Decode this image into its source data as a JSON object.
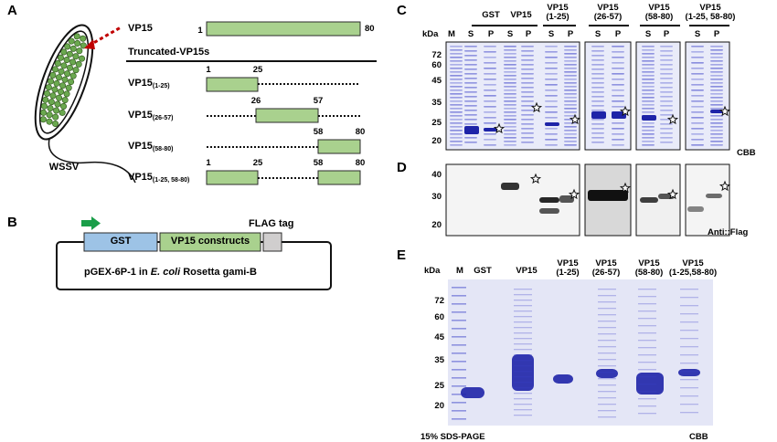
{
  "panels": {
    "a": "A",
    "b": "B",
    "c": "C",
    "d": "D",
    "e": "E"
  },
  "panel_a": {
    "virus_label": "WSSV",
    "full_label": "VP15",
    "full_start": "1",
    "full_end": "80",
    "section_title": "Truncated-VP15s",
    "constructs": [
      {
        "name": "VP15",
        "sub": "(1-25)",
        "nums": [
          "1",
          "25"
        ]
      },
      {
        "name": "VP15",
        "sub": "(26-57)",
        "nums": [
          "26",
          "57"
        ]
      },
      {
        "name": "VP15",
        "sub": "(58-80)",
        "nums": [
          "58",
          "80"
        ]
      },
      {
        "name": "VP15",
        "sub": "(1-25, 58-80)",
        "nums": [
          "1",
          "25",
          "58",
          "80"
        ]
      }
    ]
  },
  "panel_b": {
    "gst": "GST",
    "vp15": "VP15 constructs",
    "flag": "FLAG tag",
    "caption_pre": "pGEX-6P-1 in ",
    "caption_italic": "E. coli",
    "caption_post": " Rosetta gami-B"
  },
  "panel_c": {
    "kda": "kDa",
    "marker": "M",
    "groups": [
      "GST",
      "VP15",
      "VP15\n(1-25)",
      "VP15\n(26-57)",
      "VP15\n(58-80)",
      "VP15\n(1-25, 58-80)"
    ],
    "s": "S",
    "p": "P",
    "ticks": [
      "72",
      "60",
      "45",
      "35",
      "25",
      "20"
    ],
    "stain": "CBB"
  },
  "panel_d": {
    "ticks": [
      "40",
      "30",
      "20"
    ],
    "stain": "Anti::Flag"
  },
  "panel_e": {
    "kda": "kDa",
    "marker": "M",
    "lanes": [
      "GST",
      "VP15",
      "VP15\n(1-25)",
      "VP15\n(26-57)",
      "VP15\n(58-80)",
      "VP15\n(1-25,58-80)"
    ],
    "ticks": [
      "72",
      "60",
      "45",
      "35",
      "25",
      "20"
    ],
    "footer_left": "15% SDS-PAGE",
    "footer_right": "CBB"
  },
  "colors": {
    "construct_fill": "#a9d18e",
    "construct_stroke": "#2b2b2b",
    "gst_fill": "#9dc3e6",
    "flag_fill": "#d0cece",
    "arrow_green": "#1a9e49",
    "red_dash": "#c00000",
    "gel_bg": "#e8eaf8",
    "band": "#3a3fc8"
  }
}
